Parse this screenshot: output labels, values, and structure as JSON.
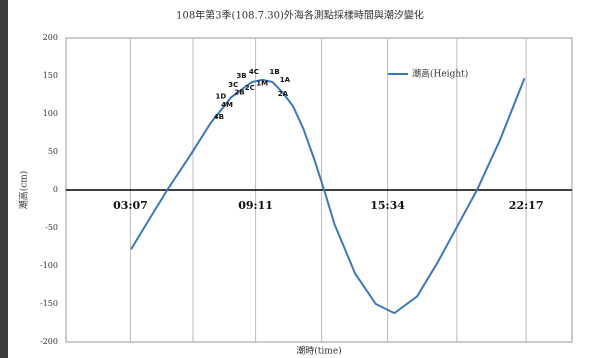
{
  "chart_data": {
    "type": "line",
    "title": "108年第3季(108.7.30)外海各測點採樣時間與潮汐變化",
    "x_label": "潮時(time)",
    "y_label": "潮高(cm)",
    "xlim": [
      0,
      24.5
    ],
    "xticks": [
      {
        "value": 3.12,
        "label": "03:07"
      },
      {
        "value": 9.18,
        "label": "09:11"
      },
      {
        "value": 15.57,
        "label": "15:34"
      },
      {
        "value": 22.28,
        "label": "22:17"
      }
    ],
    "ylim": [
      -200,
      200
    ],
    "yticks": [
      -200,
      -150,
      -100,
      -50,
      0,
      50,
      100,
      150,
      200
    ],
    "grid": true,
    "legend": "right",
    "x": [
      3.15,
      4,
      4.9,
      6,
      7,
      8,
      9,
      9.5,
      10,
      10.5,
      11,
      11.5,
      12,
      12.5,
      13,
      14,
      15,
      15.9,
      17,
      18,
      19,
      19.9,
      21,
      22.2
    ],
    "series": [
      {
        "name": "潮高(Height)",
        "color": "#3a78c0",
        "values": [
          -78,
          -40,
          0,
          45,
          88,
          122,
          142,
          145,
          142,
          128,
          110,
          80,
          42,
          0,
          -45,
          -110,
          -150,
          -162,
          -140,
          -95,
          -45,
          0,
          65,
          147
        ]
      }
    ],
    "annotations": [
      {
        "text": "4B",
        "x": 7.4,
        "y": 96
      },
      {
        "text": "4M",
        "x": 7.8,
        "y": 112
      },
      {
        "text": "1D",
        "x": 7.5,
        "y": 123
      },
      {
        "text": "2B",
        "x": 8.4,
        "y": 128
      },
      {
        "text": "3C",
        "x": 8.1,
        "y": 138
      },
      {
        "text": "2C",
        "x": 8.9,
        "y": 134
      },
      {
        "text": "3B",
        "x": 8.5,
        "y": 150
      },
      {
        "text": "4C",
        "x": 9.1,
        "y": 155
      },
      {
        "text": "1M",
        "x": 9.5,
        "y": 140
      },
      {
        "text": "1B",
        "x": 10.1,
        "y": 155
      },
      {
        "text": "1A",
        "x": 10.6,
        "y": 145
      },
      {
        "text": "2A",
        "x": 10.5,
        "y": 126
      }
    ]
  }
}
